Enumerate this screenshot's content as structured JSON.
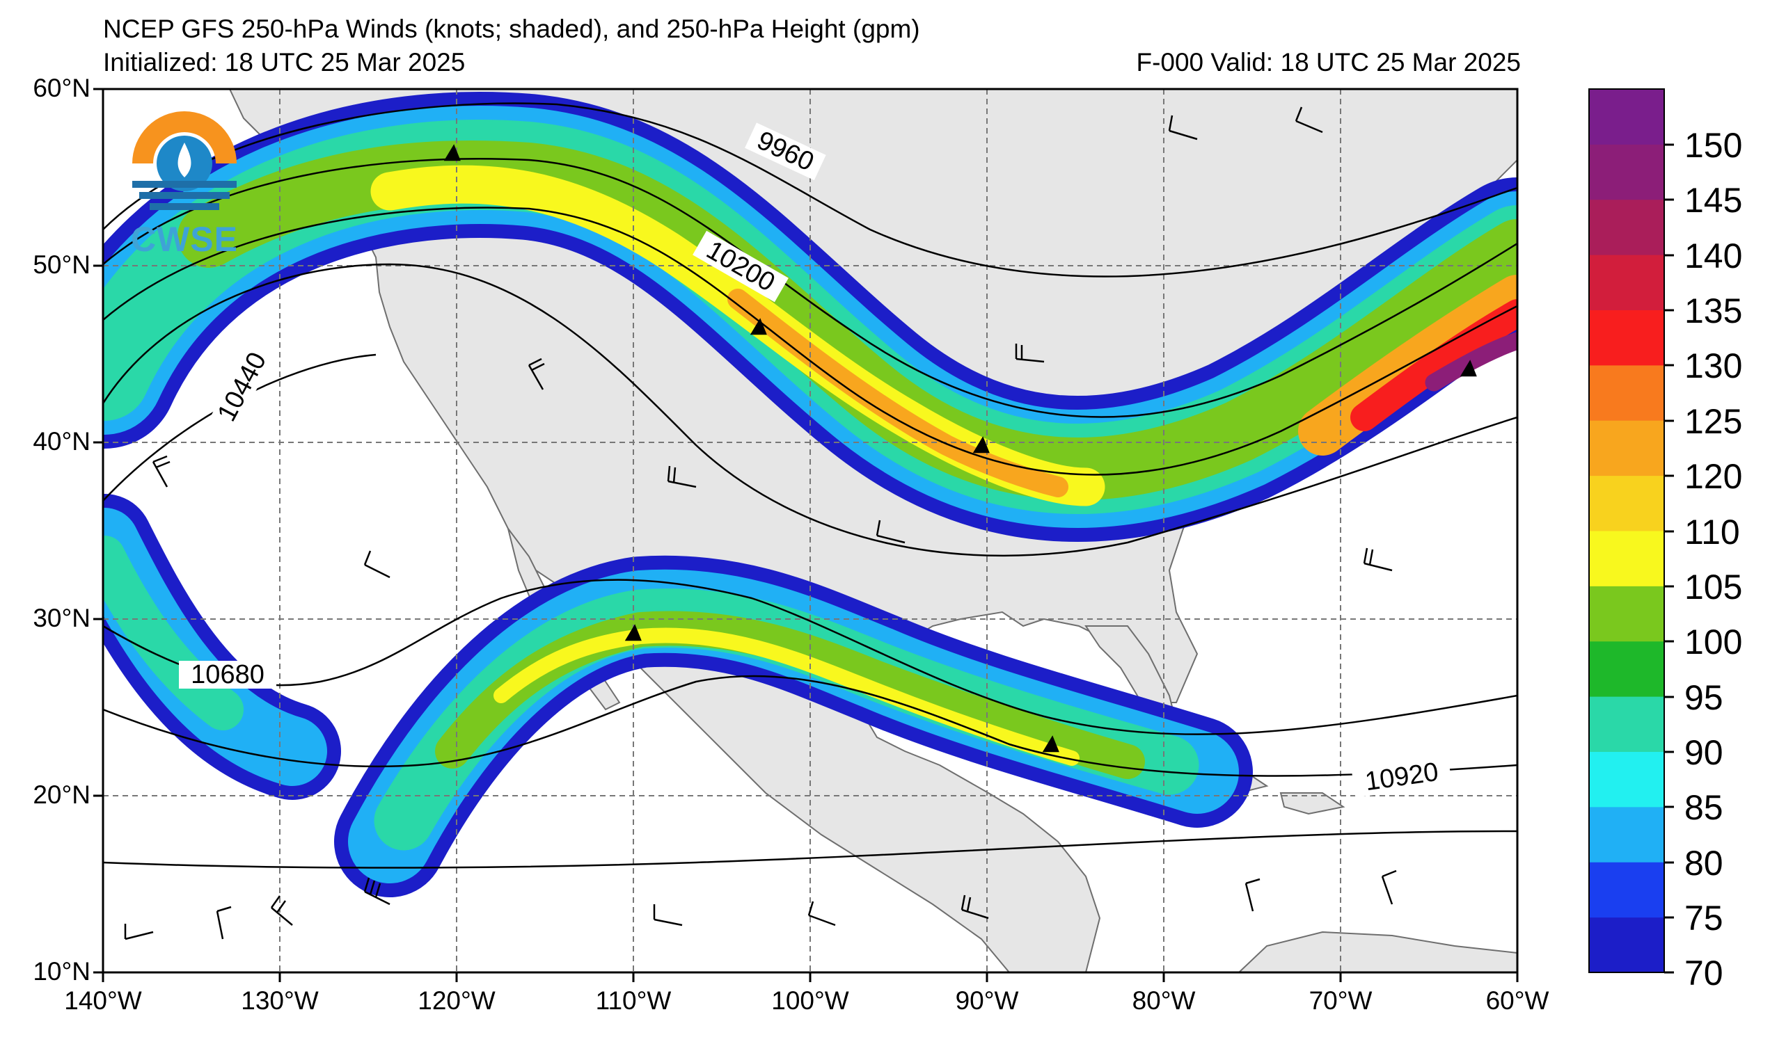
{
  "title": {
    "line1": "NCEP GFS 250-hPa Winds (knots; shaded), and 250-hPa Height (gpm)",
    "line2": "Initialized: 18 UTC 25 Mar 2025",
    "valid": "F-000  Valid: 18 UTC 25 Mar 2025"
  },
  "logo": {
    "text": "CWSE",
    "icon": "cwse-logo-icon"
  },
  "map": {
    "lon_range": [
      -140,
      -60
    ],
    "lat_range": [
      10,
      60
    ],
    "grid": true,
    "lat_labels": [
      "60°N",
      "50°N",
      "40°N",
      "30°N",
      "20°N",
      "10°N"
    ],
    "lon_labels": [
      "140°W",
      "130°W",
      "120°W",
      "110°W",
      "100°W",
      "90°W",
      "80°W",
      "70°W",
      "60°W"
    ]
  },
  "contours": [
    {
      "label": "9960"
    },
    {
      "label": "10200"
    },
    {
      "label": "10440"
    },
    {
      "label": "10680"
    },
    {
      "label": "10920"
    }
  ],
  "colorbar": {
    "unit": "knots",
    "ticks": [
      "150",
      "145",
      "140",
      "135",
      "130",
      "125",
      "120",
      "110",
      "105",
      "100",
      "95",
      "90",
      "85",
      "80",
      "75",
      "70"
    ],
    "colors": [
      "#1c1ec8",
      "#1a3ff0",
      "#20b0f5",
      "#22f0f0",
      "#2ad8a8",
      "#1eb82a",
      "#7ac81e",
      "#f8f81e",
      "#f8d21e",
      "#f8a61e",
      "#f87a1e",
      "#f81e1e",
      "#d21e3c",
      "#aa1e5a",
      "#8c1e78",
      "#7a1e8c"
    ]
  }
}
